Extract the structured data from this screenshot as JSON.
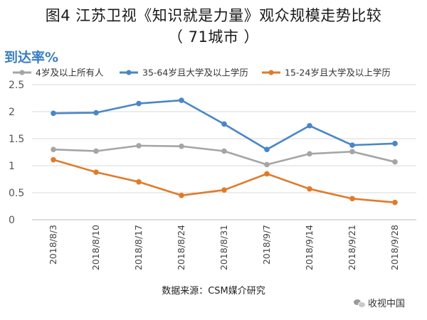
{
  "title_line1": "图4 江苏卫视《知识就是力量》观众规模走势比较",
  "title_line2": "（ 71城市 ）",
  "unit_label": "到达率%",
  "source": "数据来源：CSM媒介研究",
  "watermark": "收视中国",
  "watermark_icon": "wechat-icon",
  "chart_data": {
    "type": "line",
    "title": "图4 江苏卫视《知识就是力量》观众规模走势比较（71城市）",
    "ylabel": "到达率%",
    "xlabel": "",
    "ylim": [
      0,
      2.5
    ],
    "yticks": [
      0,
      0.5,
      1,
      1.5,
      2,
      2.5
    ],
    "ytick_labels": [
      "0",
      "0.5",
      "1",
      "1.5",
      "2",
      "2.5"
    ],
    "grid": true,
    "legend_position": "top",
    "categories": [
      "2018/8/3",
      "2018/8/10",
      "2018/8/17",
      "2018/8/24",
      "2018/8/31",
      "2018/9/7",
      "2018/9/14",
      "2018/9/21",
      "2018/9/28"
    ],
    "series": [
      {
        "name": "4岁及以上所有人",
        "color": "#a5a5a5",
        "values": [
          1.3,
          1.27,
          1.37,
          1.36,
          1.27,
          1.02,
          1.22,
          1.26,
          1.07
        ]
      },
      {
        "name": "35-64岁且大学及以上学历",
        "color": "#4a86c5",
        "values": [
          1.97,
          1.98,
          2.15,
          2.21,
          1.77,
          1.3,
          1.74,
          1.38,
          1.41
        ]
      },
      {
        "name": "15-24岁且大学及以上学历",
        "color": "#e07b2a",
        "values": [
          1.11,
          0.88,
          0.7,
          0.45,
          0.55,
          0.85,
          0.57,
          0.39,
          0.32
        ]
      }
    ]
  }
}
